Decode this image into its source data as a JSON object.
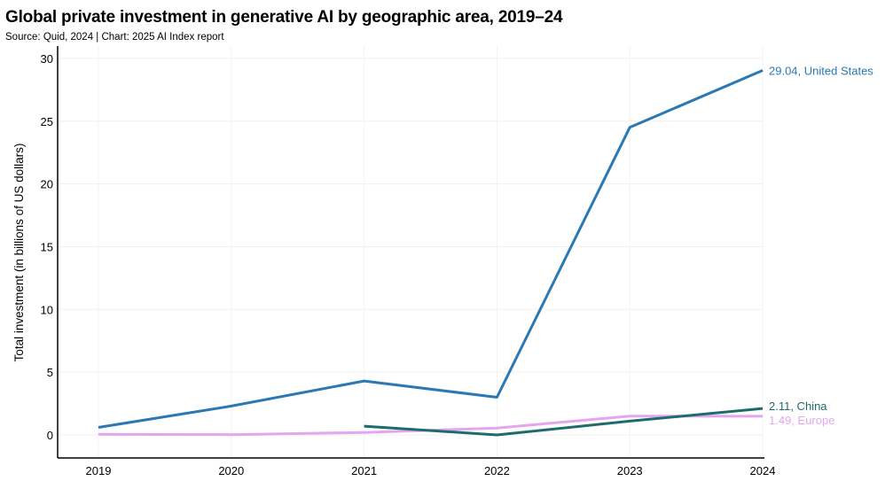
{
  "chart_data": {
    "type": "line",
    "title": "Global private investment in generative AI by geographic area, 2019–24",
    "subtitle": "Source: Quid, 2024 | Chart: 2025 AI Index report",
    "xlabel": "",
    "ylabel": "Total investment (in billions of US dollars)",
    "x": [
      "2019",
      "2020",
      "2021",
      "2022",
      "2023",
      "2024"
    ],
    "ylim": [
      -1.8,
      30.5
    ],
    "yticks": [
      0,
      5,
      10,
      15,
      20,
      25,
      30
    ],
    "grid": true,
    "legend": "end-of-line labels",
    "series": [
      {
        "name": "United States",
        "color": "#2a78b4",
        "values": [
          0.6,
          2.3,
          4.3,
          3.0,
          24.5,
          29.04
        ],
        "end_label": "29.04, United States"
      },
      {
        "name": "China",
        "color": "#1d6b6b",
        "values": [
          null,
          null,
          0.7,
          0.0,
          1.1,
          2.11
        ],
        "end_label": "2.11, China"
      },
      {
        "name": "Europe",
        "color": "#e4a6f0",
        "values": [
          0.05,
          0.02,
          0.2,
          0.55,
          1.5,
          1.49
        ],
        "end_label": "1.49, Europe"
      }
    ]
  }
}
